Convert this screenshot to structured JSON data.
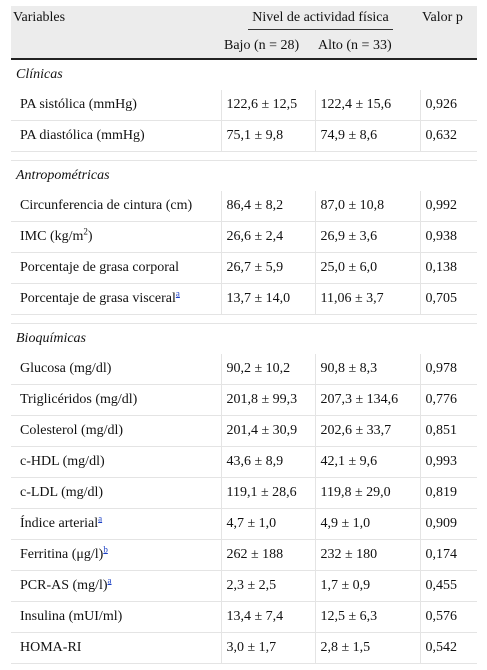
{
  "header": {
    "variables": "Variables",
    "group": "Nivel de actividad física",
    "pvalue": "Valor p",
    "low": "Bajo (n = 28)",
    "high": "Alto (n = 33)"
  },
  "sections": [
    {
      "title": "Clínicas",
      "rows": [
        {
          "name": "PA sistólica (mmHg)",
          "low": "122,6 ± 12,5",
          "high": "122,4 ± 15,6",
          "p": "0,926"
        },
        {
          "name": "PA diastólica (mmHg)",
          "low": "75,1 ± 9,8",
          "high": "74,9 ± 8,6",
          "p": "0,632"
        }
      ]
    },
    {
      "title": "Antropométricas",
      "rows": [
        {
          "name": "Circunferencia de cintura (cm)",
          "low": "86,4 ± 8,2",
          "high": "87,0 ± 10,8",
          "p": "0,992"
        },
        {
          "name": "IMC (kg/m",
          "sup": "2",
          "name_tail": ")",
          "low": "26,6 ± 2,4",
          "high": "26,9 ± 3,6",
          "p": "0,938"
        },
        {
          "name": "Porcentaje de grasa corporal",
          "low": "26,7 ± 5,9",
          "high": "25,0 ± 6,0",
          "p": "0,138"
        },
        {
          "name": "Porcentaje de grasa visceral",
          "fn": "a",
          "low": "13,7 ± 14,0",
          "high": "11,06 ± 3,7",
          "p": "0,705"
        }
      ]
    },
    {
      "title": "Bioquímicas",
      "rows": [
        {
          "name": "Glucosa (mg/dl)",
          "low": "90,2 ± 10,2",
          "high": "90,8 ± 8,3",
          "p": "0,978"
        },
        {
          "name": "Triglicéridos (mg/dl)",
          "low": "201,8 ± 99,3",
          "high": "207,3 ± 134,6",
          "p": "0,776"
        },
        {
          "name": "Colesterol (mg/dl)",
          "low": "201,4 ± 30,9",
          "high": "202,6 ± 33,7",
          "p": "0,851"
        },
        {
          "name": "c-HDL (mg/dl)",
          "low": "43,6 ± 8,9",
          "high": "42,1 ± 9,6",
          "p": "0,993"
        },
        {
          "name": "c-LDL (mg/dl)",
          "low": "119,1 ± 28,6",
          "high": "119,8 ± 29,0",
          "p": "0,819"
        },
        {
          "name": "Índice arterial",
          "fn": "a",
          "low": "4,7 ± 1,0",
          "high": "4,9 ± 1,0",
          "p": "0,909"
        },
        {
          "name": "Ferritina (μg/l)",
          "fn": "b",
          "low": "262 ± 188",
          "high": "232 ± 180",
          "p": "0,174"
        },
        {
          "name": "PCR-AS (mg/l)",
          "fn": "a",
          "low": "2,3 ± 2,5",
          "high": "1,7 ± 0,9",
          "p": "0,455"
        },
        {
          "name": "Insulina (mUI/ml)",
          "low": "13,4 ± 7,4",
          "high": "12,5 ± 6,3",
          "p": "0,576"
        },
        {
          "name": "HOMA-RI",
          "low": "3,0 ± 1,7",
          "high": "2,8 ± 1,5",
          "p": "0,542"
        }
      ]
    }
  ]
}
